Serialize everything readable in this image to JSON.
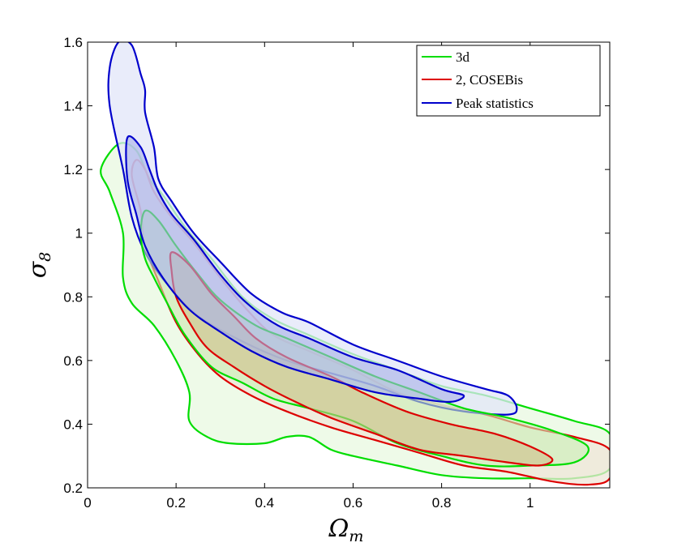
{
  "chart_data": {
    "type": "contour",
    "title": "",
    "xlabel": "Ω_m",
    "ylabel": "σ_8",
    "xlabel_main": "Ω",
    "xlabel_sub": "m",
    "ylabel_main": "σ",
    "ylabel_sub": "8",
    "xlim": [
      0,
      1.18
    ],
    "ylim": [
      0.2,
      1.6
    ],
    "xticks": [
      0,
      0.2,
      0.4,
      0.6,
      0.8,
      1
    ],
    "xtick_labels": [
      "0",
      "0.2",
      "0.4",
      "0.6",
      "0.8",
      "1"
    ],
    "yticks": [
      0.2,
      0.4,
      0.6,
      0.8,
      1,
      1.2,
      1.4,
      1.6
    ],
    "ytick_labels": [
      "0.2",
      "0.4",
      "0.6",
      "0.8",
      "1",
      "1.2",
      "1.4",
      "1.6"
    ],
    "legend_position": "top-right",
    "series": [
      {
        "name": "3d",
        "color": "#00dd00",
        "fill": "#e8f8e0",
        "fill_inner": "#c9f0b8",
        "levels": [
          {
            "label": "outer",
            "points": [
              [
                0.07,
                1.28
              ],
              [
                0.11,
                1.26
              ],
              [
                0.14,
                1.17
              ],
              [
                0.17,
                1.12
              ],
              [
                0.22,
                1.02
              ],
              [
                0.28,
                0.92
              ],
              [
                0.35,
                0.8
              ],
              [
                0.42,
                0.73
              ],
              [
                0.5,
                0.68
              ],
              [
                0.6,
                0.62
              ],
              [
                0.7,
                0.57
              ],
              [
                0.8,
                0.52
              ],
              [
                0.9,
                0.49
              ],
              [
                1.0,
                0.45
              ],
              [
                1.1,
                0.41
              ],
              [
                1.18,
                0.37
              ],
              [
                1.18,
                0.26
              ],
              [
                1.1,
                0.23
              ],
              [
                1.0,
                0.23
              ],
              [
                0.9,
                0.23
              ],
              [
                0.8,
                0.24
              ],
              [
                0.7,
                0.27
              ],
              [
                0.6,
                0.3
              ],
              [
                0.55,
                0.32
              ],
              [
                0.5,
                0.36
              ],
              [
                0.45,
                0.36
              ],
              [
                0.4,
                0.34
              ],
              [
                0.32,
                0.34
              ],
              [
                0.27,
                0.36
              ],
              [
                0.23,
                0.41
              ],
              [
                0.23,
                0.5
              ],
              [
                0.2,
                0.6
              ],
              [
                0.15,
                0.71
              ],
              [
                0.1,
                0.78
              ],
              [
                0.08,
                0.86
              ],
              [
                0.08,
                1.0
              ],
              [
                0.05,
                1.13
              ],
              [
                0.03,
                1.2
              ]
            ]
          },
          {
            "label": "inner",
            "points": [
              [
                0.13,
                1.07
              ],
              [
                0.16,
                1.04
              ],
              [
                0.2,
                0.96
              ],
              [
                0.25,
                0.87
              ],
              [
                0.3,
                0.79
              ],
              [
                0.38,
                0.71
              ],
              [
                0.45,
                0.67
              ],
              [
                0.55,
                0.61
              ],
              [
                0.65,
                0.55
              ],
              [
                0.75,
                0.5
              ],
              [
                0.85,
                0.45
              ],
              [
                0.95,
                0.42
              ],
              [
                1.05,
                0.38
              ],
              [
                1.13,
                0.33
              ],
              [
                1.1,
                0.28
              ],
              [
                1.0,
                0.27
              ],
              [
                0.9,
                0.27
              ],
              [
                0.8,
                0.3
              ],
              [
                0.7,
                0.34
              ],
              [
                0.6,
                0.41
              ],
              [
                0.5,
                0.45
              ],
              [
                0.42,
                0.48
              ],
              [
                0.35,
                0.53
              ],
              [
                0.28,
                0.58
              ],
              [
                0.22,
                0.68
              ],
              [
                0.18,
                0.78
              ],
              [
                0.15,
                0.86
              ],
              [
                0.13,
                0.92
              ],
              [
                0.12,
                1.0
              ]
            ]
          }
        ]
      },
      {
        "name": "2, COSEBis",
        "color": "#dd0000",
        "fill": "#efe6d8",
        "fill_inner": "#cfc08a",
        "levels": [
          {
            "label": "outer",
            "points": [
              [
                0.11,
                1.23
              ],
              [
                0.13,
                1.2
              ],
              [
                0.15,
                1.13
              ],
              [
                0.19,
                1.05
              ],
              [
                0.24,
                0.97
              ],
              [
                0.3,
                0.86
              ],
              [
                0.36,
                0.76
              ],
              [
                0.42,
                0.68
              ],
              [
                0.5,
                0.63
              ],
              [
                0.6,
                0.57
              ],
              [
                0.7,
                0.5
              ],
              [
                0.8,
                0.46
              ],
              [
                0.9,
                0.43
              ],
              [
                1.0,
                0.39
              ],
              [
                1.1,
                0.36
              ],
              [
                1.18,
                0.32
              ],
              [
                1.18,
                0.23
              ],
              [
                1.13,
                0.21
              ],
              [
                1.05,
                0.22
              ],
              [
                0.95,
                0.25
              ],
              [
                0.85,
                0.27
              ],
              [
                0.75,
                0.31
              ],
              [
                0.65,
                0.35
              ],
              [
                0.55,
                0.39
              ],
              [
                0.45,
                0.44
              ],
              [
                0.37,
                0.49
              ],
              [
                0.3,
                0.55
              ],
              [
                0.25,
                0.62
              ],
              [
                0.2,
                0.72
              ],
              [
                0.16,
                0.85
              ],
              [
                0.13,
                0.96
              ],
              [
                0.12,
                1.07
              ],
              [
                0.1,
                1.18
              ]
            ]
          },
          {
            "label": "inner",
            "points": [
              [
                0.19,
                0.94
              ],
              [
                0.23,
                0.9
              ],
              [
                0.28,
                0.81
              ],
              [
                0.33,
                0.74
              ],
              [
                0.38,
                0.67
              ],
              [
                0.45,
                0.61
              ],
              [
                0.55,
                0.55
              ],
              [
                0.62,
                0.5
              ],
              [
                0.72,
                0.44
              ],
              [
                0.82,
                0.4
              ],
              [
                0.92,
                0.37
              ],
              [
                1.0,
                0.33
              ],
              [
                1.05,
                0.29
              ],
              [
                1.02,
                0.27
              ],
              [
                0.95,
                0.28
              ],
              [
                0.85,
                0.3
              ],
              [
                0.75,
                0.32
              ],
              [
                0.65,
                0.37
              ],
              [
                0.55,
                0.42
              ],
              [
                0.47,
                0.47
              ],
              [
                0.4,
                0.52
              ],
              [
                0.33,
                0.58
              ],
              [
                0.27,
                0.64
              ],
              [
                0.23,
                0.72
              ],
              [
                0.2,
                0.8
              ],
              [
                0.19,
                0.88
              ]
            ]
          }
        ]
      },
      {
        "name": "Peak statistics",
        "color": "#0000cc",
        "fill": "#e2e6f8",
        "fill_inner": "#a9b0ea",
        "levels": [
          {
            "label": "outer",
            "points": [
              [
                0.07,
                1.6
              ],
              [
                0.1,
                1.59
              ],
              [
                0.12,
                1.5
              ],
              [
                0.13,
                1.45
              ],
              [
                0.13,
                1.38
              ],
              [
                0.15,
                1.27
              ],
              [
                0.16,
                1.17
              ],
              [
                0.19,
                1.1
              ],
              [
                0.24,
                1.0
              ],
              [
                0.3,
                0.91
              ],
              [
                0.37,
                0.81
              ],
              [
                0.44,
                0.75
              ],
              [
                0.5,
                0.72
              ],
              [
                0.6,
                0.65
              ],
              [
                0.7,
                0.6
              ],
              [
                0.8,
                0.55
              ],
              [
                0.9,
                0.51
              ],
              [
                0.95,
                0.49
              ],
              [
                0.97,
                0.45
              ],
              [
                0.95,
                0.43
              ],
              [
                0.85,
                0.44
              ],
              [
                0.75,
                0.47
              ],
              [
                0.65,
                0.52
              ],
              [
                0.55,
                0.56
              ],
              [
                0.45,
                0.6
              ],
              [
                0.35,
                0.66
              ],
              [
                0.25,
                0.74
              ],
              [
                0.18,
                0.84
              ],
              [
                0.13,
                0.94
              ],
              [
                0.1,
                1.05
              ],
              [
                0.08,
                1.2
              ],
              [
                0.05,
                1.4
              ],
              [
                0.05,
                1.52
              ]
            ]
          },
          {
            "label": "inner",
            "points": [
              [
                0.09,
                1.3
              ],
              [
                0.12,
                1.27
              ],
              [
                0.14,
                1.2
              ],
              [
                0.16,
                1.13
              ],
              [
                0.19,
                1.06
              ],
              [
                0.24,
                0.98
              ],
              [
                0.3,
                0.87
              ],
              [
                0.36,
                0.78
              ],
              [
                0.43,
                0.71
              ],
              [
                0.5,
                0.67
              ],
              [
                0.6,
                0.61
              ],
              [
                0.7,
                0.57
              ],
              [
                0.8,
                0.51
              ],
              [
                0.85,
                0.49
              ],
              [
                0.82,
                0.47
              ],
              [
                0.75,
                0.48
              ],
              [
                0.65,
                0.5
              ],
              [
                0.55,
                0.54
              ],
              [
                0.45,
                0.58
              ],
              [
                0.37,
                0.63
              ],
              [
                0.3,
                0.69
              ],
              [
                0.23,
                0.76
              ],
              [
                0.17,
                0.86
              ],
              [
                0.13,
                0.96
              ],
              [
                0.11,
                1.06
              ],
              [
                0.09,
                1.17
              ]
            ]
          }
        ]
      }
    ]
  }
}
